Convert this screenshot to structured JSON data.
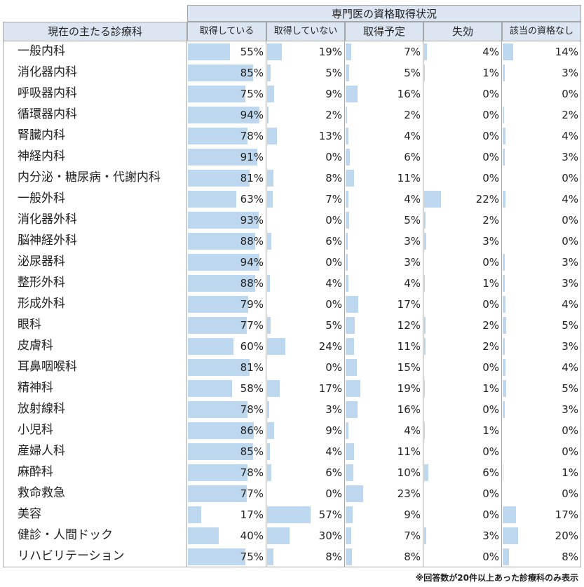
{
  "chart_data": {
    "type": "table",
    "title": "専門医の資格取得状況",
    "row_header": "現在の主たる診療科",
    "columns": [
      "取得している",
      "取得していない",
      "取得予定",
      "失効",
      "該当の資格なし"
    ],
    "unit": "%",
    "rows": [
      {
        "label": "一般内科",
        "values": [
          55,
          19,
          7,
          4,
          14
        ]
      },
      {
        "label": "消化器内科",
        "values": [
          85,
          5,
          5,
          1,
          3
        ]
      },
      {
        "label": "呼吸器内科",
        "values": [
          75,
          9,
          16,
          0,
          0
        ]
      },
      {
        "label": "循環器内科",
        "values": [
          94,
          2,
          2,
          0,
          2
        ]
      },
      {
        "label": "腎臓内科",
        "values": [
          78,
          13,
          4,
          0,
          4
        ]
      },
      {
        "label": "神経内科",
        "values": [
          91,
          0,
          6,
          0,
          3
        ]
      },
      {
        "label": "内分泌・糖尿病・代謝内科",
        "values": [
          81,
          8,
          11,
          0,
          0
        ]
      },
      {
        "label": "一般外科",
        "values": [
          63,
          7,
          4,
          22,
          4
        ]
      },
      {
        "label": "消化器外科",
        "values": [
          93,
          0,
          5,
          2,
          0
        ]
      },
      {
        "label": "脳神経外科",
        "values": [
          88,
          6,
          3,
          3,
          0
        ]
      },
      {
        "label": "泌尿器科",
        "values": [
          94,
          0,
          3,
          0,
          3
        ]
      },
      {
        "label": "整形外科",
        "values": [
          88,
          4,
          4,
          1,
          3
        ]
      },
      {
        "label": "形成外科",
        "values": [
          79,
          0,
          17,
          0,
          4
        ]
      },
      {
        "label": "眼科",
        "values": [
          77,
          5,
          12,
          2,
          5
        ]
      },
      {
        "label": "皮膚科",
        "values": [
          60,
          24,
          11,
          2,
          3
        ]
      },
      {
        "label": "耳鼻咽喉科",
        "values": [
          81,
          0,
          15,
          0,
          4
        ]
      },
      {
        "label": "精神科",
        "values": [
          58,
          17,
          19,
          1,
          5
        ]
      },
      {
        "label": "放射線科",
        "values": [
          78,
          3,
          16,
          0,
          3
        ]
      },
      {
        "label": "小児科",
        "values": [
          86,
          9,
          4,
          1,
          0
        ]
      },
      {
        "label": "産婦人科",
        "values": [
          85,
          4,
          11,
          0,
          0
        ]
      },
      {
        "label": "麻酔科",
        "values": [
          78,
          6,
          10,
          6,
          1
        ]
      },
      {
        "label": "救命救急",
        "values": [
          77,
          0,
          23,
          0,
          0
        ]
      },
      {
        "label": "美容",
        "values": [
          17,
          57,
          9,
          0,
          17
        ]
      },
      {
        "label": "健診・人間ドック",
        "values": [
          40,
          30,
          7,
          3,
          20
        ]
      },
      {
        "label": "リハビリテーション",
        "values": [
          75,
          8,
          8,
          0,
          8
        ]
      }
    ],
    "bar_color": "#bdd7ee",
    "header_color": "#dce6f2"
  },
  "footnote": "※回答数が20件以上あった診療科のみ表示"
}
